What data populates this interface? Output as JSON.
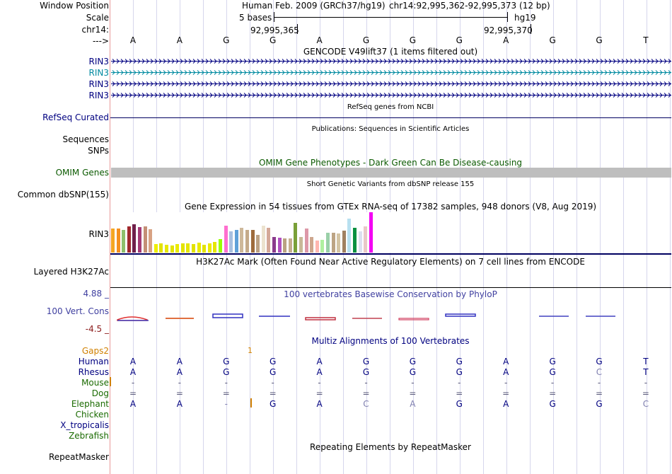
{
  "labels": {
    "window_position": "Window Position",
    "scale": "Scale",
    "chrom": "chr14:",
    "arrow": "--->",
    "rin3": "RIN3",
    "refseq": "RefSeq Curated",
    "sequences": "Sequences",
    "snps": "SNPs",
    "omim": "OMIM Genes",
    "dbsnp": "Common dbSNP(155)",
    "gtex_rin3": "RIN3",
    "h3k27ac": "Layered H3K27Ac",
    "cons_max": "4.88 _",
    "cons_name": "100 Vert. Cons",
    "cons_min": "-4.5 _",
    "gaps": "Gaps2",
    "human": "Human",
    "rhesus": "Rhesus",
    "mouse": "Mouse",
    "dog": "Dog",
    "elephant": "Elephant",
    "chicken": "Chicken",
    "x_tropicalis": "X_tropicalis",
    "zebrafish": "Zebrafish",
    "repeatmasker": "RepeatMasker"
  },
  "header": {
    "assembly_title": "Human Feb. 2009 (GRCh37/hg19)",
    "position": "chr14:92,995,362-92,995,373 (12 bp)",
    "scale_left": "5 bases",
    "scale_right": "hg19",
    "coord1": "92,995,365",
    "coord2": "92,995,370"
  },
  "bases": [
    "A",
    "A",
    "G",
    "G",
    "A",
    "G",
    "G",
    "G",
    "A",
    "G",
    "G",
    "T"
  ],
  "tracks": {
    "gencode_title": "GENCODE V49lift37 (1 items filtered out)",
    "refseq_title": "RefSeq genes from NCBI",
    "publications_title": "Publications: Sequences in Scientific Articles",
    "omim_title": "OMIM Gene Phenotypes - Dark Green Can Be Disease-causing",
    "dbsnp_title": "Short Genetic Variants from dbSNP release 155",
    "gtex_title": "Gene Expression in 54 tissues from GTEx RNA-seq of 17382 samples, 948 donors (V8, Aug 2019)",
    "h3k27ac_title": "H3K27Ac Mark (Often Found Near Active Regulatory Elements) on 7 cell lines from ENCODE",
    "phylop_title": "100 vertebrates Basewise Conservation by PhyloP",
    "multiz_title": "Multiz Alignments of 100 Vertebrates",
    "repeat_title": "Repeating Elements by RepeatMasker",
    "gap_mark": "1"
  },
  "alignment": {
    "human": [
      "A",
      "A",
      "G",
      "G",
      "A",
      "G",
      "G",
      "G",
      "A",
      "G",
      "G",
      "T"
    ],
    "rhesus": [
      "A",
      "A",
      "G",
      "G",
      "A",
      "G",
      "G",
      "G",
      "A",
      "G",
      "C",
      "T"
    ],
    "mouse": [
      "-",
      "-",
      "-",
      "-",
      "-",
      "-",
      "-",
      "-",
      "-",
      "-",
      "-",
      "-"
    ],
    "dog": [
      "=",
      "=",
      "=",
      "=",
      "=",
      "=",
      "=",
      "=",
      "=",
      "=",
      "=",
      "="
    ],
    "elephant": [
      "A",
      "A",
      "-",
      "G",
      "A",
      "C",
      "A",
      "G",
      "A",
      "G",
      "G",
      "C"
    ]
  },
  "colors": {
    "gene_dark": "#000080",
    "gene_highlight": "#008aa0",
    "omim_gray": "#bebebe",
    "omim_text": "#0b5a00",
    "phylop_blue": "#4040a0",
    "cons_min_red": "#8b1a1a",
    "gaps_orange": "#d08000",
    "species_green": "#1a6a00"
  },
  "gtex_colors": [
    "#f5a623",
    "#f58f1f",
    "#8fbf6c",
    "#a0282d",
    "#70204b",
    "#a53a75",
    "#c48f76",
    "#d8a283",
    "#eeee00",
    "#e3e300",
    "#e8e800",
    "#e3e300",
    "#eaea00",
    "#e3e300",
    "#e6e600",
    "#e2e200",
    "#e9e900",
    "#e3e300",
    "#ebeb00",
    "#e6e600",
    "#99ff00",
    "#ff6fcf",
    "#a8c0e0",
    "#5fa0d8",
    "#ceb89a",
    "#c4aa8a",
    "#9e6b3c",
    "#bca184",
    "#ece2ce",
    "#d4a898",
    "#8a3a8c",
    "#b050c0",
    "#baa282",
    "#c6ae8e",
    "#7aa038",
    "#c8b898",
    "#dd98a8",
    "#cda68e",
    "#ffb6b0",
    "#b0f0a0",
    "#9ad0a8",
    "#bda484",
    "#d4c4a4",
    "#a08060",
    "#b8e0f0",
    "#089040",
    "#dce0f0",
    "#e8c8c8",
    "#f300f3"
  ],
  "gtex_heights": [
    34,
    34,
    32,
    37,
    40,
    36,
    37,
    33,
    12,
    13,
    11,
    10,
    12,
    13,
    13,
    12,
    14,
    11,
    13,
    15,
    19,
    38,
    30,
    32,
    35,
    32,
    32,
    25,
    38,
    35,
    22,
    21,
    20,
    20,
    42,
    22,
    34,
    22,
    17,
    18,
    28,
    28,
    27,
    31,
    48,
    35,
    30,
    37,
    57
  ]
}
